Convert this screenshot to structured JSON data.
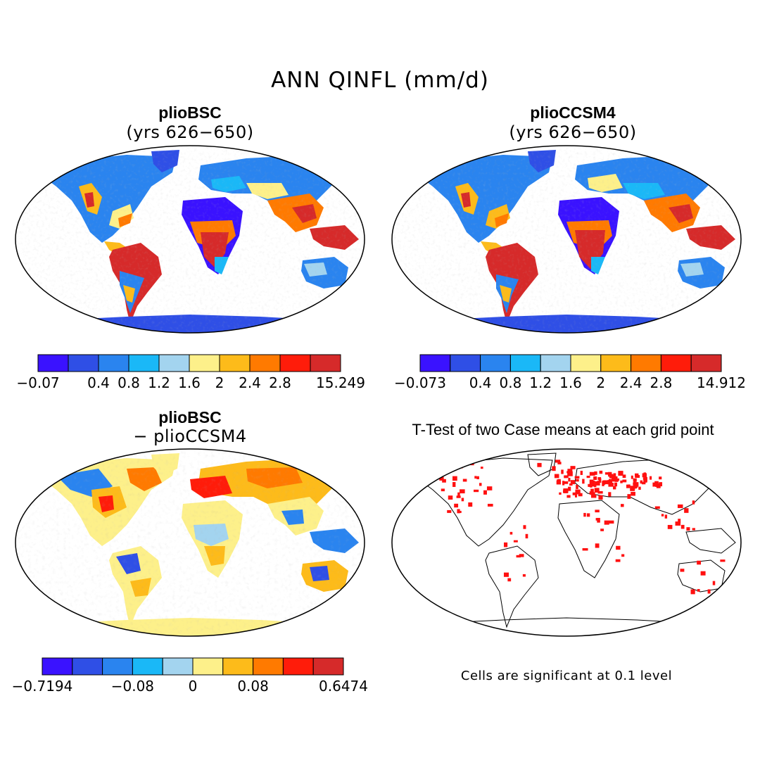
{
  "figure": {
    "title": "ANN QINFL (mm/d)",
    "panels": [
      {
        "title": "plioBSC",
        "subtitle": "(yrs 626−650)",
        "colorbar": {
          "colors": [
            "#3a12ff",
            "#2f4fe6",
            "#2a84ef",
            "#1ab8f7",
            "#a3d4ef",
            "#fdf08a",
            "#fdbb1a",
            "#ff7a00",
            "#ff1c0a",
            "#d62a2a"
          ],
          "ticks": [
            "−0.07",
            "0.4",
            "0.8",
            "1.2",
            "1.6",
            "2",
            "2.4",
            "2.8",
            "15.249"
          ]
        }
      },
      {
        "title": "plioCCSM4",
        "subtitle": "(yrs 626−650)",
        "colorbar": {
          "colors": [
            "#3a12ff",
            "#2f4fe6",
            "#2a84ef",
            "#1ab8f7",
            "#a3d4ef",
            "#fdf08a",
            "#fdbb1a",
            "#ff7a00",
            "#ff1c0a",
            "#d62a2a"
          ],
          "ticks": [
            "−0.073",
            "0.4",
            "0.8",
            "1.2",
            "1.6",
            "2",
            "2.4",
            "2.8",
            "14.912"
          ]
        }
      },
      {
        "title": "plioBSC",
        "subtitle": "− plioCCSM4",
        "colorbar": {
          "colors": [
            "#3a12ff",
            "#2f4fe6",
            "#2a84ef",
            "#1ab8f7",
            "#a3d4ef",
            "#fdf08a",
            "#fdbb1a",
            "#ff7a00",
            "#ff1c0a",
            "#d62a2a"
          ],
          "ticks": [
            "−0.7194",
            "−0.08",
            "0",
            "0.08",
            "0.6474"
          ]
        }
      },
      {
        "title": "T-Test of two Case means at each grid point",
        "note": "Cells are significant at 0.1 level",
        "mark_color": "#ff1010"
      }
    ]
  }
}
